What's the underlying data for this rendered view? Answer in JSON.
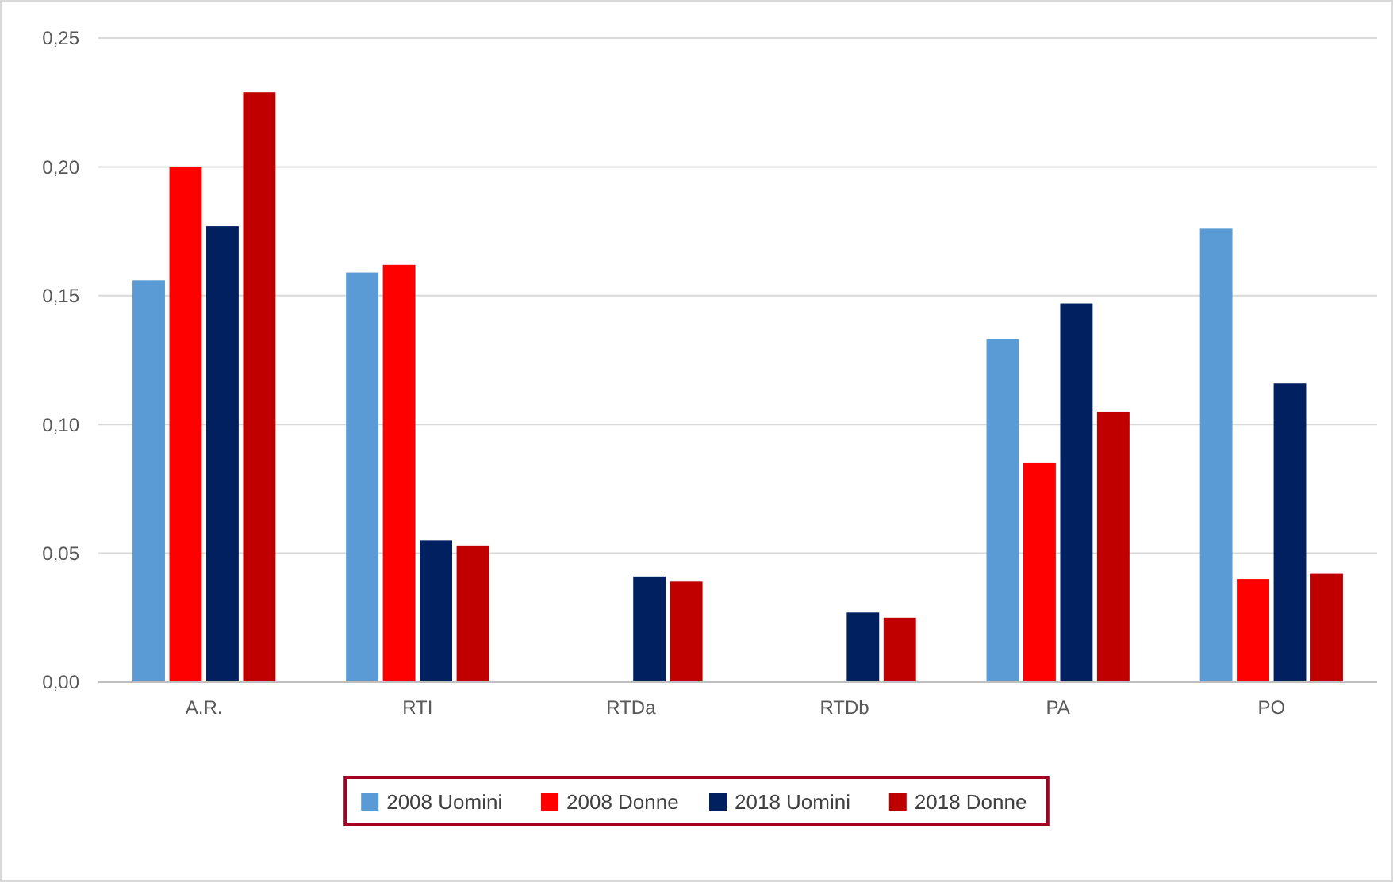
{
  "chart_data": {
    "type": "bar",
    "categories": [
      "A.R.",
      "RTI",
      "RTDa",
      "RTDb",
      "PA",
      "PO"
    ],
    "series": [
      {
        "name": "2008 Uomini",
        "color": "#5b9bd5",
        "values": [
          0.156,
          0.159,
          null,
          null,
          0.133,
          0.176
        ]
      },
      {
        "name": "2008 Donne",
        "color": "#ff0000",
        "values": [
          0.2,
          0.162,
          null,
          null,
          0.085,
          0.04
        ]
      },
      {
        "name": "2018 Uomini",
        "color": "#002060",
        "values": [
          0.177,
          0.055,
          0.041,
          0.027,
          0.147,
          0.116
        ]
      },
      {
        "name": "2018 Donne",
        "color": "#c00000",
        "values": [
          0.229,
          0.053,
          0.039,
          0.025,
          0.105,
          0.042
        ]
      }
    ],
    "ylim": [
      0,
      0.25
    ],
    "yticks": [
      {
        "value": 0,
        "label": "0,00"
      },
      {
        "value": 0.05,
        "label": "0,05"
      },
      {
        "value": 0.1,
        "label": "0,10"
      },
      {
        "value": 0.15,
        "label": "0,15"
      },
      {
        "value": 0.2,
        "label": "0,20"
      },
      {
        "value": 0.25,
        "label": "0,25"
      }
    ],
    "grid": "y",
    "legend": "bottom"
  }
}
